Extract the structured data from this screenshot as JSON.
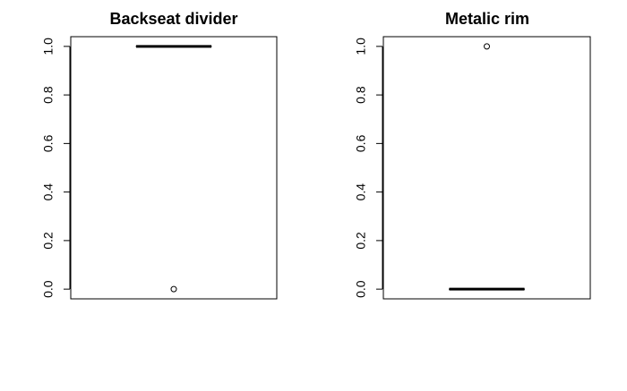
{
  "chart_data": [
    {
      "type": "boxplot",
      "title": "Backseat divider",
      "xlabel": "",
      "ylabel": "",
      "ylim": [
        -0.04,
        1.04
      ],
      "yticks": [
        "0.0",
        "0.2",
        "0.4",
        "0.6",
        "0.8",
        "1.0"
      ],
      "ytick_values": [
        0.0,
        0.2,
        0.4,
        0.6,
        0.8,
        1.0
      ],
      "grid": false,
      "box": {
        "q1": 1.0,
        "median": 1.0,
        "q3": 1.0,
        "whisker_low": 1.0,
        "whisker_high": 1.0
      },
      "outliers": [
        0.0
      ]
    },
    {
      "type": "boxplot",
      "title": "Metalic rim",
      "xlabel": "",
      "ylabel": "",
      "ylim": [
        -0.04,
        1.04
      ],
      "yticks": [
        "0.0",
        "0.2",
        "0.4",
        "0.6",
        "0.8",
        "1.0"
      ],
      "ytick_values": [
        0.0,
        0.2,
        0.4,
        0.6,
        0.8,
        1.0
      ],
      "grid": false,
      "box": {
        "q1": 0.0,
        "median": 0.0,
        "q3": 0.0,
        "whisker_low": 0.0,
        "whisker_high": 0.0
      },
      "outliers": [
        1.0
      ]
    }
  ],
  "colors": {
    "stroke": "#000000",
    "background": "#ffffff"
  }
}
